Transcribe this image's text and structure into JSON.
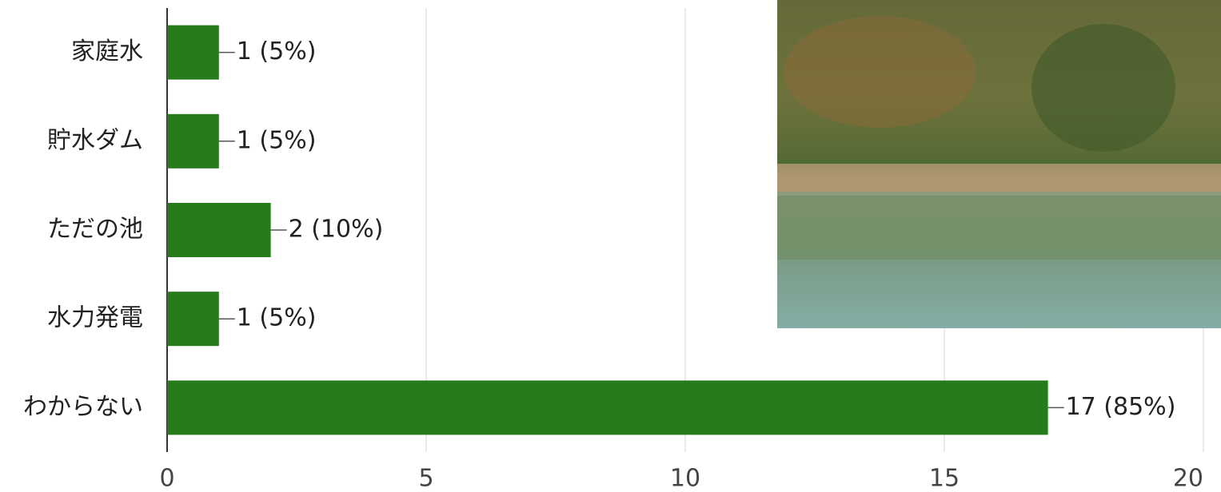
{
  "chart_data": {
    "type": "bar",
    "orientation": "horizontal",
    "categories": [
      "家庭水",
      "貯水ダム",
      "ただの池",
      "水力発電",
      "わからない"
    ],
    "values": [
      1,
      1,
      2,
      1,
      17
    ],
    "value_labels": [
      "1 (5%)",
      "1 (5%)",
      "2 (10%)",
      "1 (5%)",
      "17 (85%)"
    ],
    "color": "#267b1d",
    "xlim": [
      0,
      20
    ],
    "xticks": [
      0,
      5,
      10,
      15,
      20
    ],
    "grid": true
  }
}
